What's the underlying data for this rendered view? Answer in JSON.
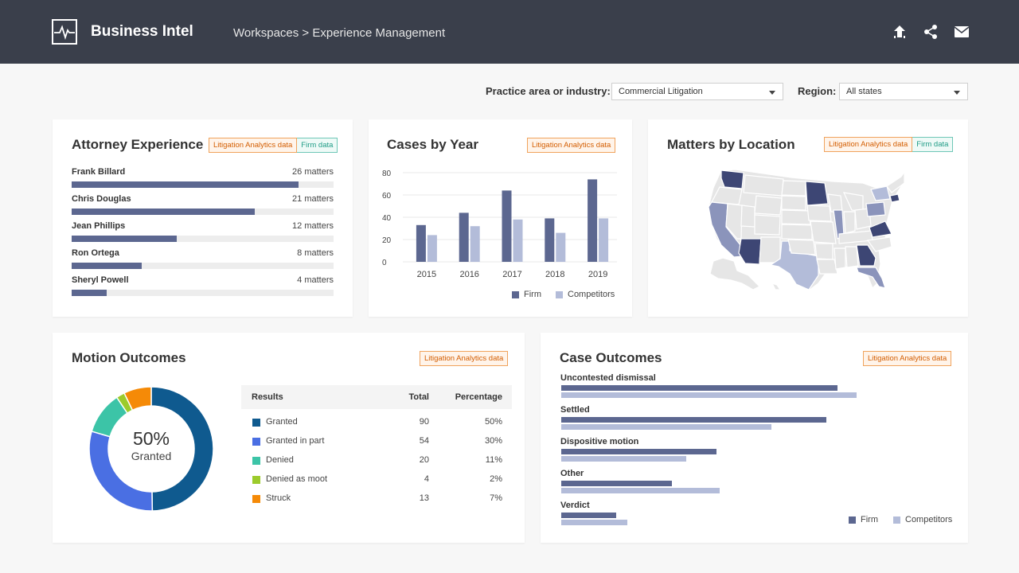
{
  "header": {
    "brand": "Business Intel",
    "breadcrumb": "Workspaces > Experience Management",
    "icons": [
      "upload-icon",
      "share-icon",
      "mail-icon"
    ]
  },
  "filters": {
    "practice_label": "Practice area or industry:",
    "practice_value": "Commercial Litigation",
    "region_label": "Region:",
    "region_value": "All states"
  },
  "tags": {
    "litigation": "Litigation Analytics data",
    "firm": "Firm data"
  },
  "colors": {
    "firm": "#5c6790",
    "competitors": "#b3bcd9",
    "orange_tag": "#d35d00",
    "teal_tag": "#1f9c86"
  },
  "attorney_experience": {
    "title": "Attorney Experience",
    "max": 30,
    "items": [
      {
        "name": "Frank Billard",
        "label": "26 matters",
        "value": 26
      },
      {
        "name": "Chris Douglas",
        "label": "21 matters",
        "value": 21
      },
      {
        "name": "Jean Phillips",
        "label": "12 matters",
        "value": 12
      },
      {
        "name": "Ron Ortega",
        "label": "8 matters",
        "value": 8
      },
      {
        "name": "Sheryl Powell",
        "label": "4 matters",
        "value": 4
      }
    ]
  },
  "cases_by_year": {
    "title": "Cases by Year",
    "chart_data": {
      "type": "bar",
      "categories": [
        "2015",
        "2016",
        "2017",
        "2018",
        "2019"
      ],
      "series": [
        {
          "name": "Firm",
          "values": [
            33,
            44,
            64,
            39,
            74
          ]
        },
        {
          "name": "Competitors",
          "values": [
            24,
            32,
            38,
            26,
            39
          ]
        }
      ],
      "yticks": [
        "80",
        "60",
        "40",
        "20",
        "0"
      ],
      "ylim": [
        0,
        80
      ],
      "grid": true,
      "legend": "bottom-right"
    }
  },
  "matters_by_location": {
    "title": "Matters by Location"
  },
  "motion_outcomes": {
    "title": "Motion Outcomes",
    "center_value": "50%",
    "center_label": "Granted",
    "columns": [
      "Results",
      "Total",
      "Percentage"
    ],
    "chart_data": {
      "type": "pie",
      "categories": [
        "Granted",
        "Granted in part",
        "Denied",
        "Denied as moot",
        "Struck"
      ],
      "values": [
        90,
        54,
        20,
        4,
        13
      ],
      "percentages": [
        "50%",
        "30%",
        "11%",
        "2%",
        "7%"
      ],
      "colors": [
        "#0f5a8f",
        "#4a6fe3",
        "#3cc4a7",
        "#9ccb2c",
        "#f58a07"
      ]
    }
  },
  "case_outcomes": {
    "title": "Case Outcomes",
    "chart_data": {
      "type": "bar",
      "orientation": "horizontal",
      "categories": [
        "Uncontested dismissal",
        "Settled",
        "Dispositive motion",
        "Other",
        "Verdict"
      ],
      "series": [
        {
          "name": "Firm",
          "values": [
            75,
            72,
            42,
            30,
            15
          ]
        },
        {
          "name": "Competitors",
          "values": [
            80,
            57,
            34,
            43,
            18
          ]
        }
      ],
      "xlim": [
        0,
        95
      ],
      "legend": "bottom-right"
    }
  }
}
